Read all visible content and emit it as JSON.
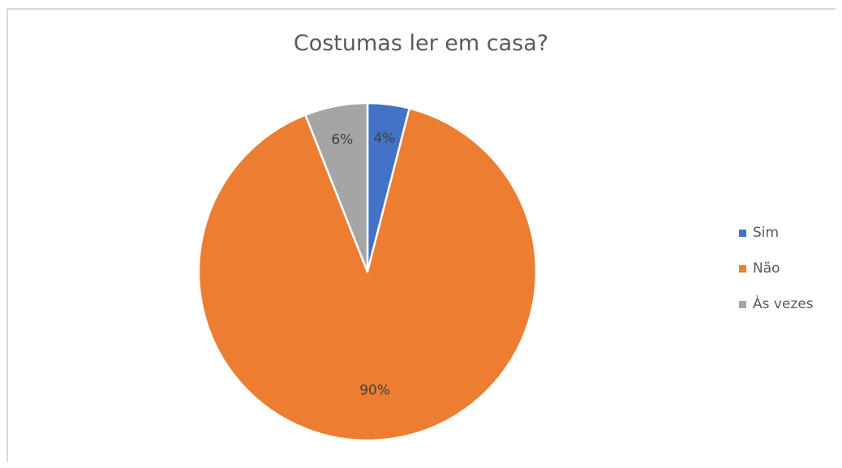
{
  "chart_data": {
    "type": "pie",
    "title": "Costumas ler em casa?",
    "categories": [
      "Sim",
      "Não",
      "Às vezes"
    ],
    "values": [
      4,
      90,
      6
    ],
    "data_labels": [
      "4%",
      "90%",
      "6%"
    ],
    "colors": [
      "#4472c4",
      "#ed7d31",
      "#a5a5a5"
    ],
    "start_angle_deg": 0,
    "direction": "clockwise",
    "legend_position": "right"
  }
}
